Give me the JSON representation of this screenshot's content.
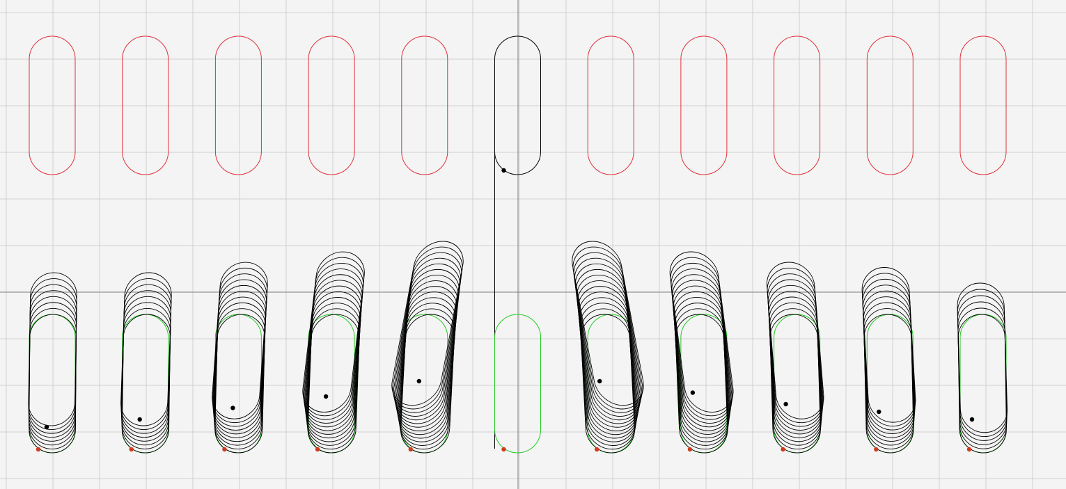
{
  "colors": {
    "background": "#f4f4f4",
    "grid": "#cfcfcf",
    "axis": "#7a7a7a",
    "reference_outline": "#e0303a",
    "active_outline": "#000000",
    "target_outline": "#22cc22",
    "trajectory": "#000000",
    "start_marker": "#d23a1e",
    "end_marker": "#000000"
  },
  "scene": {
    "reference_row_count": 11,
    "active_reference_index": 5,
    "result_row_count": 11,
    "trajectory_loops": [
      8,
      8,
      10,
      12,
      14,
      0,
      14,
      12,
      10,
      9,
      6
    ],
    "trajectory_drift": [
      0.2,
      0.4,
      0.7,
      1.0,
      1.4,
      0,
      -1.4,
      -1.1,
      -0.8,
      -0.6,
      -0.4
    ]
  }
}
